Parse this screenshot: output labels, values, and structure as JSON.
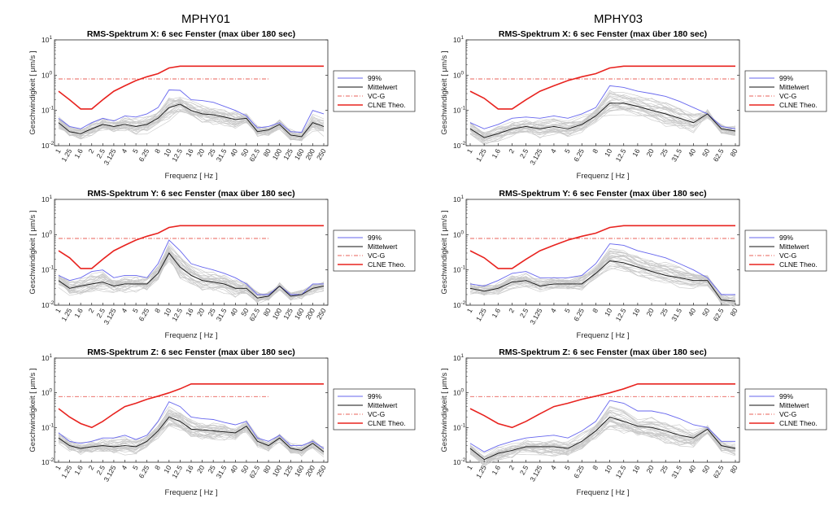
{
  "figure": {
    "column_titles": [
      "MPHY01",
      "MPHY03"
    ]
  },
  "chart_data": [
    {
      "type": "line",
      "title": "RMS-Spektrum X: 6 sec Fenster (max über 180 sec)",
      "xlabel": "Frequenz [ Hz ]",
      "ylabel": "Geschwindigkeit [ μm/s ]",
      "yscale": "log",
      "ylim": [
        0.01,
        10
      ],
      "x": [
        "1",
        "1.25",
        "1.6",
        "2",
        "2.5",
        "3.125",
        "4",
        "5",
        "6.25",
        "8",
        "10",
        "12.5",
        "16",
        "20",
        "25",
        "31.5",
        "40",
        "50",
        "62.5",
        "80",
        "100",
        "125",
        "160",
        "200",
        "250"
      ],
      "series": [
        {
          "name": "99%",
          "values": [
            0.06,
            0.035,
            0.03,
            0.045,
            0.06,
            0.05,
            0.07,
            0.065,
            0.08,
            0.12,
            0.38,
            0.37,
            0.2,
            0.19,
            0.17,
            0.13,
            0.1,
            0.07,
            0.032,
            0.035,
            0.045,
            0.025,
            0.024,
            0.1,
            0.08
          ]
        },
        {
          "name": "Mittelwert",
          "values": [
            0.045,
            0.025,
            0.022,
            0.03,
            0.04,
            0.035,
            0.04,
            0.035,
            0.04,
            0.06,
            0.12,
            0.15,
            0.1,
            0.08,
            0.075,
            0.065,
            0.055,
            0.06,
            0.025,
            0.028,
            0.04,
            0.02,
            0.018,
            0.045,
            0.035
          ]
        },
        {
          "name": "VC-G",
          "values": [
            0.78,
            0.78,
            0.78,
            0.78,
            0.78,
            0.78,
            0.78,
            0.78,
            0.78,
            0.78,
            0.78,
            0.78,
            0.78,
            0.78,
            0.78,
            0.78,
            0.78,
            0.78,
            0.78,
            0.78,
            null,
            null,
            null,
            null,
            null
          ]
        },
        {
          "name": "CLNE Theo.",
          "values": [
            0.35,
            0.2,
            0.11,
            0.11,
            0.2,
            0.35,
            0.5,
            0.7,
            0.9,
            1.1,
            1.6,
            1.8,
            1.8,
            1.8,
            1.8,
            1.8,
            1.8,
            1.8,
            1.8,
            1.8,
            1.8,
            1.8,
            1.8,
            1.8,
            1.8
          ]
        }
      ],
      "legend": "right"
    },
    {
      "type": "line",
      "title": "RMS-Spektrum X: 6 sec Fenster (max über 180 sec)",
      "xlabel": "Frequenz [ Hz ]",
      "ylabel": "Geschwindigkeit [ μm/s ]",
      "yscale": "log",
      "ylim": [
        0.01,
        10
      ],
      "x": [
        "1",
        "1.25",
        "1.6",
        "2",
        "2.5",
        "3.125",
        "4",
        "5",
        "6.25",
        "8",
        "10",
        "12.5",
        "16",
        "20",
        "25",
        "31.5",
        "40",
        "50",
        "62.5",
        "80"
      ],
      "series": [
        {
          "name": "99%",
          "values": [
            0.045,
            0.03,
            0.04,
            0.06,
            0.065,
            0.06,
            0.07,
            0.06,
            0.08,
            0.12,
            0.5,
            0.45,
            0.35,
            0.3,
            0.25,
            0.18,
            0.12,
            0.08,
            0.035,
            0.03
          ]
        },
        {
          "name": "Mittelwert",
          "values": [
            0.03,
            0.017,
            0.022,
            0.03,
            0.035,
            0.03,
            0.035,
            0.03,
            0.04,
            0.07,
            0.16,
            0.16,
            0.13,
            0.1,
            0.08,
            0.06,
            0.045,
            0.08,
            0.03,
            0.026
          ]
        },
        {
          "name": "VC-G",
          "values": [
            0.78,
            0.78,
            0.78,
            0.78,
            0.78,
            0.78,
            0.78,
            0.78,
            0.78,
            0.78,
            0.78,
            0.78,
            0.78,
            0.78,
            0.78,
            0.78,
            0.78,
            0.78,
            0.78,
            0.78
          ]
        },
        {
          "name": "CLNE Theo.",
          "values": [
            0.35,
            0.22,
            0.11,
            0.11,
            0.2,
            0.35,
            0.5,
            0.7,
            0.9,
            1.1,
            1.6,
            1.8,
            1.8,
            1.8,
            1.8,
            1.8,
            1.8,
            1.8,
            1.8,
            1.8
          ]
        }
      ],
      "legend": "right"
    },
    {
      "type": "line",
      "title": "RMS-Spektrum Y: 6 sec Fenster (max über 180 sec)",
      "xlabel": "Frequenz [ Hz ]",
      "ylabel": "Geschwindigkeit [ μm/s ]",
      "yscale": "log",
      "ylim": [
        0.01,
        10
      ],
      "x": [
        "1",
        "1.25",
        "1.6",
        "2",
        "2.5",
        "3.125",
        "4",
        "5",
        "6.25",
        "8",
        "10",
        "12.5",
        "16",
        "20",
        "25",
        "31.5",
        "40",
        "50",
        "62.5",
        "80",
        "100",
        "125",
        "160",
        "200",
        "250"
      ],
      "series": [
        {
          "name": "99%",
          "values": [
            0.07,
            0.05,
            0.06,
            0.09,
            0.1,
            0.06,
            0.07,
            0.07,
            0.06,
            0.15,
            0.7,
            0.35,
            0.15,
            0.12,
            0.1,
            0.08,
            0.06,
            0.04,
            0.02,
            0.02,
            0.035,
            0.02,
            0.02,
            0.04,
            0.04
          ]
        },
        {
          "name": "Mittelwert",
          "values": [
            0.05,
            0.03,
            0.035,
            0.04,
            0.045,
            0.035,
            0.04,
            0.04,
            0.04,
            0.08,
            0.3,
            0.12,
            0.07,
            0.05,
            0.045,
            0.04,
            0.03,
            0.03,
            0.016,
            0.018,
            0.035,
            0.018,
            0.02,
            0.03,
            0.035
          ]
        },
        {
          "name": "VC-G",
          "values": [
            0.78,
            0.78,
            0.78,
            0.78,
            0.78,
            0.78,
            0.78,
            0.78,
            0.78,
            0.78,
            0.78,
            0.78,
            0.78,
            0.78,
            0.78,
            0.78,
            0.78,
            0.78,
            0.78,
            0.78,
            null,
            null,
            null,
            null,
            null
          ]
        },
        {
          "name": "CLNE Theo.",
          "values": [
            0.35,
            0.22,
            0.11,
            0.11,
            0.2,
            0.35,
            0.5,
            0.7,
            0.9,
            1.1,
            1.6,
            1.8,
            1.8,
            1.8,
            1.8,
            1.8,
            1.8,
            1.8,
            1.8,
            1.8,
            1.8,
            1.8,
            1.8,
            1.8,
            1.8
          ]
        }
      ],
      "legend": "right"
    },
    {
      "type": "line",
      "title": "RMS-Spektrum Y: 6 sec Fenster (max über 180 sec)",
      "xlabel": "Frequenz [ Hz ]",
      "ylabel": "Geschwindigkeit [ μm/s ]",
      "yscale": "log",
      "ylim": [
        0.01,
        10
      ],
      "x": [
        "1",
        "1.25",
        "1.6",
        "2",
        "2.5",
        "3.125",
        "4",
        "5",
        "6.25",
        "8",
        "10",
        "12.5",
        "16",
        "20",
        "25",
        "31.5",
        "40",
        "50",
        "62.5",
        "80"
      ],
      "series": [
        {
          "name": "99%",
          "values": [
            0.04,
            0.035,
            0.05,
            0.08,
            0.09,
            0.06,
            0.06,
            0.06,
            0.07,
            0.15,
            0.55,
            0.5,
            0.35,
            0.28,
            0.22,
            0.15,
            0.1,
            0.06,
            0.02,
            0.02
          ]
        },
        {
          "name": "Mittelwert",
          "values": [
            0.03,
            0.025,
            0.03,
            0.045,
            0.05,
            0.035,
            0.04,
            0.04,
            0.04,
            0.08,
            0.18,
            0.16,
            0.12,
            0.09,
            0.07,
            0.06,
            0.05,
            0.05,
            0.014,
            0.013
          ]
        },
        {
          "name": "VC-G",
          "values": [
            0.78,
            0.78,
            0.78,
            0.78,
            0.78,
            0.78,
            0.78,
            0.78,
            0.78,
            0.78,
            0.78,
            0.78,
            0.78,
            0.78,
            0.78,
            0.78,
            0.78,
            0.78,
            0.78,
            0.78
          ]
        },
        {
          "name": "CLNE Theo.",
          "values": [
            0.35,
            0.22,
            0.11,
            0.11,
            0.2,
            0.35,
            0.5,
            0.7,
            0.9,
            1.1,
            1.6,
            1.8,
            1.8,
            1.8,
            1.8,
            1.8,
            1.8,
            1.8,
            1.8,
            1.8
          ]
        }
      ],
      "legend": "right"
    },
    {
      "type": "line",
      "title": "RMS-Spektrum Z: 6 sec Fenster (max über 180 sec)",
      "xlabel": "Frequenz [ Hz ]",
      "ylabel": "Geschwindigkeit [ μm/s ]",
      "yscale": "log",
      "ylim": [
        0.01,
        10
      ],
      "x": [
        "1",
        "1.25",
        "1.6",
        "2",
        "2.5",
        "3.125",
        "4",
        "5",
        "6.25",
        "8",
        "10",
        "12.5",
        "16",
        "20",
        "25",
        "31.5",
        "40",
        "50",
        "62.5",
        "80",
        "100",
        "125",
        "160",
        "200",
        "250"
      ],
      "series": [
        {
          "name": "99%",
          "values": [
            0.07,
            0.04,
            0.035,
            0.04,
            0.05,
            0.05,
            0.06,
            0.045,
            0.06,
            0.15,
            0.55,
            0.4,
            0.2,
            0.18,
            0.17,
            0.14,
            0.12,
            0.15,
            0.05,
            0.04,
            0.06,
            0.03,
            0.03,
            0.04,
            0.025
          ]
        },
        {
          "name": "Mittelwert",
          "values": [
            0.05,
            0.03,
            0.025,
            0.028,
            0.03,
            0.028,
            0.03,
            0.028,
            0.04,
            0.08,
            0.2,
            0.15,
            0.09,
            0.085,
            0.08,
            0.075,
            0.07,
            0.11,
            0.04,
            0.03,
            0.05,
            0.025,
            0.022,
            0.035,
            0.02
          ]
        },
        {
          "name": "VC-G",
          "values": [
            0.78,
            0.78,
            0.78,
            0.78,
            0.78,
            0.78,
            0.78,
            0.78,
            0.78,
            0.78,
            0.78,
            0.78,
            0.78,
            0.78,
            0.78,
            0.78,
            0.78,
            0.78,
            0.78,
            0.78,
            null,
            null,
            null,
            null,
            null
          ]
        },
        {
          "name": "CLNE Theo.",
          "values": [
            0.35,
            0.2,
            0.13,
            0.1,
            0.15,
            0.25,
            0.4,
            0.5,
            0.65,
            0.8,
            1.0,
            1.3,
            1.8,
            1.8,
            1.8,
            1.8,
            1.8,
            1.8,
            1.8,
            1.8,
            1.8,
            1.8,
            1.8,
            1.8,
            1.8
          ]
        }
      ],
      "legend": "right"
    },
    {
      "type": "line",
      "title": "RMS-Spektrum Z: 6 sec Fenster (max über 180 sec)",
      "xlabel": "Frequenz [ Hz ]",
      "ylabel": "Geschwindigkeit [ μm/s ]",
      "yscale": "log",
      "ylim": [
        0.01,
        10
      ],
      "x": [
        "1",
        "1.25",
        "1.6",
        "2",
        "2.5",
        "3.125",
        "4",
        "5",
        "6.25",
        "8",
        "10",
        "12.5",
        "16",
        "20",
        "25",
        "31.5",
        "40",
        "50",
        "62.5",
        "80"
      ],
      "series": [
        {
          "name": "99%",
          "values": [
            0.035,
            0.02,
            0.03,
            0.04,
            0.05,
            0.055,
            0.06,
            0.05,
            0.08,
            0.15,
            0.6,
            0.5,
            0.3,
            0.3,
            0.25,
            0.18,
            0.12,
            0.1,
            0.04,
            0.04
          ]
        },
        {
          "name": "Mittelwert",
          "values": [
            0.025,
            0.012,
            0.018,
            0.022,
            0.028,
            0.028,
            0.028,
            0.025,
            0.04,
            0.08,
            0.2,
            0.15,
            0.11,
            0.1,
            0.08,
            0.06,
            0.05,
            0.09,
            0.03,
            0.025
          ]
        },
        {
          "name": "VC-G",
          "values": [
            0.78,
            0.78,
            0.78,
            0.78,
            0.78,
            0.78,
            0.78,
            0.78,
            0.78,
            0.78,
            0.78,
            0.78,
            0.78,
            0.78,
            0.78,
            0.78,
            0.78,
            0.78,
            0.78,
            0.78
          ]
        },
        {
          "name": "CLNE Theo.",
          "values": [
            0.35,
            0.22,
            0.13,
            0.1,
            0.15,
            0.25,
            0.4,
            0.5,
            0.65,
            0.8,
            1.0,
            1.3,
            1.8,
            1.8,
            1.8,
            1.8,
            1.8,
            1.8,
            1.8,
            1.8
          ]
        }
      ],
      "legend": "right"
    }
  ],
  "style": {
    "colors": {
      "p99": "#6666ee",
      "mean": "#111111",
      "vcg": "#e8605a",
      "clne": "#e8231f",
      "background_traces": "#c8c8c8",
      "axes": "#262626"
    }
  }
}
